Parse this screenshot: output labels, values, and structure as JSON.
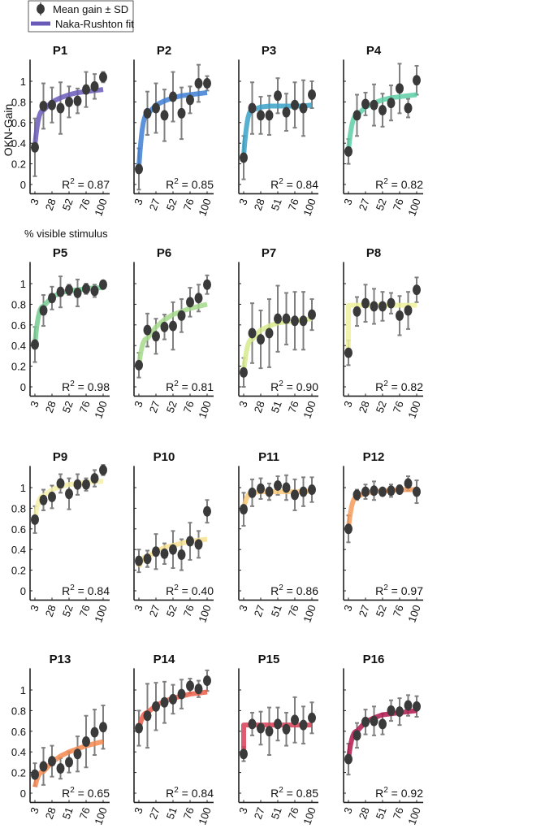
{
  "chart_data": {
    "type": "scatter",
    "ylabel": "OKN-Gain",
    "xlabel": "% visible stimulus",
    "ylim": [
      -0.09,
      1.21
    ],
    "yticks": [
      "0",
      "0.2",
      "0.4",
      "0.6",
      "0.8",
      "1"
    ],
    "legend": {
      "placement": "top-left",
      "entries": [
        "Mean gain ± SD",
        "Naka-Rushton fit"
      ]
    },
    "panels": [
      {
        "title": "P1",
        "r2_label": "R",
        "r2_value": " = 0.87",
        "color": "#6a5ab8",
        "xticks": [
          "3",
          "28",
          "52",
          "76",
          "100"
        ],
        "mean": [
          0.36,
          0.76,
          0.77,
          0.74,
          0.8,
          0.81,
          0.92,
          0.95,
          1.04
        ],
        "sd": [
          0.28,
          0.22,
          0.17,
          0.25,
          0.15,
          0.12,
          0.17,
          0.12,
          0.05
        ],
        "fit": [
          0.38,
          0.72,
          0.8,
          0.84,
          0.87,
          0.89,
          0.9,
          0.91,
          0.92
        ]
      },
      {
        "title": "P2",
        "r2_label": "R",
        "r2_value": " = 0.85",
        "color": "#3f7fd4",
        "xticks": [
          "3",
          "27",
          "52",
          "76",
          "100"
        ],
        "mean": [
          0.15,
          0.69,
          0.74,
          0.67,
          0.85,
          0.69,
          0.82,
          0.98,
          0.98
        ],
        "sd": [
          0.2,
          0.21,
          0.24,
          0.25,
          0.24,
          0.25,
          0.13,
          0.18,
          0.07
        ],
        "fit": [
          0.17,
          0.68,
          0.77,
          0.81,
          0.84,
          0.86,
          0.87,
          0.88,
          0.89
        ]
      },
      {
        "title": "P3",
        "r2_label": "R",
        "r2_value": " = 0.84",
        "color": "#3aa2c8",
        "xticks": [
          "3",
          "28",
          "51",
          "76",
          "100"
        ],
        "mean": [
          0.26,
          0.74,
          0.67,
          0.67,
          0.86,
          0.7,
          0.77,
          0.74,
          0.87
        ],
        "sd": [
          0.21,
          0.25,
          0.18,
          0.19,
          0.17,
          0.18,
          0.22,
          0.27,
          0.13
        ],
        "fit": [
          0.28,
          0.72,
          0.75,
          0.76,
          0.76,
          0.76,
          0.76,
          0.76,
          0.77
        ]
      },
      {
        "title": "P4",
        "r2_label": "R",
        "r2_value": " = 0.82",
        "color": "#5ecfa6",
        "xticks": [
          "3",
          "27",
          "52",
          "76",
          "100"
        ],
        "mean": [
          0.32,
          0.67,
          0.78,
          0.77,
          0.72,
          0.79,
          0.93,
          0.74,
          1.01
        ],
        "sd": [
          0.12,
          0.2,
          0.11,
          0.2,
          0.16,
          0.17,
          0.24,
          0.09,
          0.14
        ],
        "fit": [
          0.33,
          0.67,
          0.75,
          0.79,
          0.82,
          0.84,
          0.85,
          0.86,
          0.87
        ]
      },
      {
        "title": "P5",
        "r2_label": "R",
        "r2_value": " = 0.98",
        "color": "#74cb8f",
        "xticks": [
          "3",
          "28",
          "52",
          "76",
          "100"
        ],
        "mean": [
          0.41,
          0.74,
          0.86,
          0.92,
          0.94,
          0.91,
          0.95,
          0.93,
          0.99
        ],
        "sd": [
          0.17,
          0.15,
          0.11,
          0.15,
          0.05,
          0.13,
          0.05,
          0.06,
          0.02
        ],
        "fit": [
          0.42,
          0.78,
          0.87,
          0.91,
          0.93,
          0.94,
          0.95,
          0.96,
          0.96
        ]
      },
      {
        "title": "P6",
        "r2_label": "R",
        "r2_value": " = 0.81",
        "color": "#a6d98c",
        "xticks": [
          "3",
          "27",
          "52",
          "76",
          "100"
        ],
        "mean": [
          0.21,
          0.55,
          0.49,
          0.58,
          0.59,
          0.69,
          0.82,
          0.86,
          0.99
        ],
        "sd": [
          0.12,
          0.16,
          0.17,
          0.12,
          0.23,
          0.16,
          0.14,
          0.13,
          0.09
        ],
        "fit": [
          0.21,
          0.47,
          0.58,
          0.65,
          0.7,
          0.73,
          0.76,
          0.78,
          0.8
        ]
      },
      {
        "title": "P7",
        "r2_label": "R",
        "r2_value": " = 0.90",
        "color": "#d6ea8c",
        "xticks": [
          "3",
          "28",
          "51",
          "76",
          "100"
        ],
        "mean": [
          0.14,
          0.52,
          0.46,
          0.52,
          0.66,
          0.66,
          0.64,
          0.64,
          0.7
        ],
        "sd": [
          0.14,
          0.29,
          0.28,
          0.33,
          0.32,
          0.25,
          0.28,
          0.28,
          0.15
        ],
        "fit": [
          0.15,
          0.46,
          0.55,
          0.59,
          0.62,
          0.63,
          0.64,
          0.65,
          0.66
        ]
      },
      {
        "title": "P8",
        "r2_label": "R",
        "r2_value": " = 0.82",
        "color": "#eef19c",
        "step": true,
        "xticks": [
          "3",
          "28",
          "52",
          "76",
          "100"
        ],
        "mean": [
          0.33,
          0.73,
          0.81,
          0.78,
          0.78,
          0.81,
          0.69,
          0.74,
          0.94
        ],
        "sd": [
          0.12,
          0.14,
          0.18,
          0.17,
          0.14,
          0.1,
          0.19,
          0.18,
          0.12
        ],
        "fit": [
          0.36,
          0.79,
          0.79,
          0.79,
          0.79,
          0.79,
          0.79,
          0.79,
          0.79
        ]
      },
      {
        "title": "P9",
        "r2_label": "R",
        "r2_value": " = 0.84",
        "color": "#f5f0aa",
        "xticks": [
          "3",
          "28",
          "52",
          "76",
          "100"
        ],
        "mean": [
          0.69,
          0.88,
          0.91,
          1.04,
          0.94,
          1.03,
          1.03,
          1.09,
          1.17
        ],
        "sd": [
          0.13,
          0.1,
          0.11,
          0.09,
          0.15,
          0.1,
          0.06,
          0.08,
          0.05
        ],
        "fit": [
          0.7,
          0.92,
          0.98,
          1.01,
          1.03,
          1.04,
          1.05,
          1.06,
          1.06
        ]
      },
      {
        "title": "P10",
        "r2_label": "R",
        "r2_value": " = 0.40",
        "color": "#f6e090",
        "xticks": [
          "3",
          "27",
          "52",
          "76",
          "100"
        ],
        "mean": [
          0.29,
          0.31,
          0.38,
          0.36,
          0.4,
          0.35,
          0.48,
          0.45,
          0.77
        ],
        "sd": [
          0.11,
          0.08,
          0.17,
          0.1,
          0.18,
          0.15,
          0.18,
          0.13,
          0.11
        ],
        "fit": [
          0.23,
          0.33,
          0.38,
          0.42,
          0.44,
          0.46,
          0.48,
          0.49,
          0.5
        ]
      },
      {
        "title": "P11",
        "r2_label": "R",
        "r2_value": " = 0.86",
        "color": "#f8c87a",
        "xticks": [
          "3",
          "27",
          "51",
          "76",
          "100"
        ],
        "mean": [
          0.79,
          0.95,
          0.99,
          0.96,
          1.02,
          1.0,
          0.93,
          0.96,
          0.98
        ],
        "sd": [
          0.16,
          0.13,
          0.1,
          0.08,
          0.09,
          0.12,
          0.15,
          0.14,
          0.12
        ],
        "fit": [
          0.8,
          0.95,
          0.96,
          0.96,
          0.96,
          0.96,
          0.96,
          0.96,
          0.97
        ]
      },
      {
        "title": "P12",
        "r2_label": "R",
        "r2_value": " = 0.97",
        "color": "#f59b5c",
        "xticks": [
          "3",
          "27",
          "52",
          "76",
          "100"
        ],
        "mean": [
          0.6,
          0.93,
          0.96,
          0.97,
          0.96,
          0.97,
          0.98,
          1.04,
          0.96
        ],
        "sd": [
          0.13,
          0.05,
          0.07,
          0.09,
          0.03,
          0.06,
          0.04,
          0.07,
          0.11
        ],
        "fit": [
          0.61,
          0.91,
          0.95,
          0.96,
          0.97,
          0.97,
          0.98,
          0.98,
          0.98
        ]
      },
      {
        "title": "P13",
        "r2_label": "R",
        "r2_value": " = 0.65",
        "color": "#f5884f",
        "xticks": [
          "3",
          "28",
          "51",
          "76",
          "100"
        ],
        "mean": [
          0.18,
          0.26,
          0.31,
          0.24,
          0.3,
          0.38,
          0.5,
          0.59,
          0.64
        ],
        "sd": [
          0.11,
          0.18,
          0.15,
          0.1,
          0.1,
          0.17,
          0.25,
          0.22,
          0.21
        ],
        "fit": [
          0.06,
          0.21,
          0.3,
          0.36,
          0.4,
          0.43,
          0.46,
          0.48,
          0.5
        ]
      },
      {
        "title": "P14",
        "r2_label": "R",
        "r2_value": " = 0.84",
        "color": "#ec5d49",
        "xticks": [
          "3",
          "27",
          "51",
          "76",
          "100"
        ],
        "mean": [
          0.63,
          0.75,
          0.84,
          0.88,
          0.91,
          0.96,
          1.04,
          1.01,
          1.09
        ],
        "sd": [
          0.17,
          0.31,
          0.23,
          0.2,
          0.14,
          0.14,
          0.07,
          0.08,
          0.1
        ],
        "fit": [
          0.61,
          0.78,
          0.85,
          0.89,
          0.92,
          0.94,
          0.96,
          0.97,
          0.98
        ]
      },
      {
        "title": "P15",
        "r2_label": "R",
        "r2_value": " = 0.85",
        "color": "#d83e56",
        "step": true,
        "xticks": [
          "3",
          "27",
          "51",
          "76",
          "100"
        ],
        "mean": [
          0.38,
          0.67,
          0.63,
          0.6,
          0.67,
          0.62,
          0.71,
          0.66,
          0.73
        ],
        "sd": [
          0.07,
          0.11,
          0.16,
          0.23,
          0.16,
          0.16,
          0.22,
          0.18,
          0.15
        ],
        "fit": [
          0.38,
          0.66,
          0.66,
          0.66,
          0.66,
          0.66,
          0.66,
          0.66,
          0.66
        ]
      },
      {
        "title": "P16",
        "r2_label": "R",
        "r2_value": " = 0.92",
        "color": "#b0164e",
        "xticks": [
          "3",
          "28",
          "51",
          "76",
          "100"
        ],
        "mean": [
          0.33,
          0.56,
          0.69,
          0.7,
          0.67,
          0.8,
          0.79,
          0.85,
          0.84
        ],
        "sd": [
          0.15,
          0.12,
          0.12,
          0.14,
          0.1,
          0.1,
          0.13,
          0.1,
          0.1
        ],
        "fit": [
          0.33,
          0.6,
          0.69,
          0.73,
          0.76,
          0.77,
          0.78,
          0.79,
          0.8
        ]
      }
    ]
  }
}
